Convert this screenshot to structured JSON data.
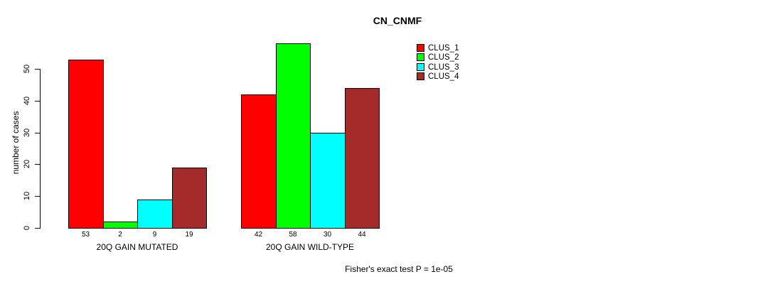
{
  "title": "CN_CNMF",
  "footer_note": "Fisher's exact test P = 1e-05",
  "colors": {
    "background": "#ffffff",
    "axis": "#000000",
    "bar_border": "#000000",
    "clus_1": "#ff0000",
    "clus_2": "#00ff00",
    "clus_3": "#00ffff",
    "clus_4": "#a52a2a"
  },
  "chart_data": {
    "type": "bar",
    "title": "CN_CNMF",
    "xlabel": "",
    "ylabel": "number of cases",
    "ylim": [
      0,
      58
    ],
    "yticks": [
      0,
      10,
      20,
      30,
      40,
      50
    ],
    "grid": false,
    "legend_position": "top-right",
    "series": [
      {
        "name": "CLUS_1",
        "color": "#ff0000"
      },
      {
        "name": "CLUS_2",
        "color": "#00ff00"
      },
      {
        "name": "CLUS_3",
        "color": "#00ffff"
      },
      {
        "name": "CLUS_4",
        "color": "#a52a2a"
      }
    ],
    "groups": [
      {
        "label": "20Q GAIN MUTATED",
        "values": [
          53,
          2,
          9,
          19
        ],
        "value_labels": [
          "53",
          "2",
          "9",
          "19"
        ]
      },
      {
        "label": "20Q GAIN WILD-TYPE",
        "values": [
          42,
          58,
          30,
          44
        ],
        "value_labels": [
          "42",
          "58",
          "30",
          "44"
        ]
      }
    ],
    "annotation": "Fisher's exact test P = 1e-05"
  }
}
